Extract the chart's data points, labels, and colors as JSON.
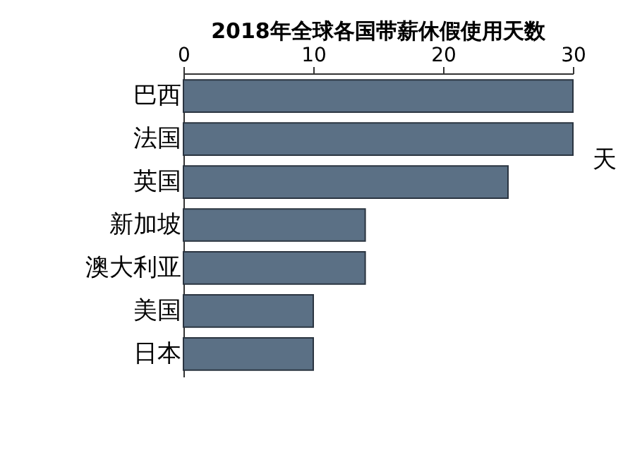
{
  "chart_data": {
    "type": "bar",
    "orientation": "horizontal",
    "title": "2018年全球各国带薪休假使用天数",
    "xlabel": "天",
    "categories": [
      "巴西",
      "法国",
      "英国",
      "新加坡",
      "澳大利亚",
      "美国",
      "日本"
    ],
    "values": [
      30,
      30,
      25,
      14,
      14,
      10,
      10
    ],
    "color": "#5b7085",
    "xlim": [
      0,
      30
    ],
    "xticks": [
      0,
      10,
      20,
      30
    ],
    "grid": false
  }
}
